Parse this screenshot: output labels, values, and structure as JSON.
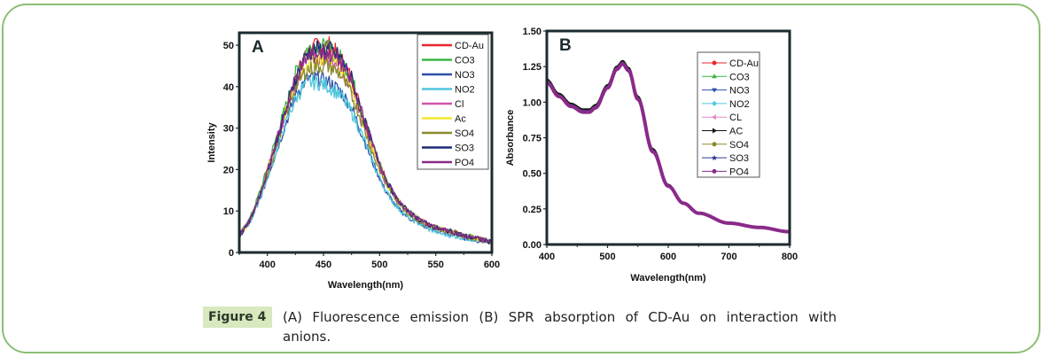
{
  "figure": {
    "label": "Figure 4",
    "caption": "(A) Fluorescence emission (B) SPR absorption of CD-Au on interaction with anions."
  },
  "chart_data": [
    {
      "type": "line",
      "panel_label": "A",
      "title": "",
      "xlabel": "Wavelength(nm)",
      "ylabel": "Intensity",
      "xlim": [
        375,
        600
      ],
      "ylim": [
        0,
        53
      ],
      "xticks": [
        400,
        450,
        500,
        550,
        600
      ],
      "yticks": [
        0,
        10,
        20,
        30,
        40,
        50
      ],
      "grid": false,
      "legend_position": "top-right",
      "x": [
        375,
        385,
        395,
        405,
        415,
        425,
        435,
        445,
        455,
        465,
        475,
        485,
        495,
        505,
        515,
        525,
        535,
        545,
        555,
        565,
        575,
        585,
        600
      ],
      "series": [
        {
          "name": "CD-Au",
          "color": "#e8262a",
          "values": [
            4,
            8,
            15,
            24,
            33,
            42,
            48,
            50,
            50,
            47,
            42,
            33,
            25,
            18,
            13,
            10,
            8,
            6.5,
            5.5,
            5,
            4,
            3.5,
            2.5
          ]
        },
        {
          "name": "CO3",
          "color": "#3cb544",
          "values": [
            4,
            8.5,
            16,
            25,
            34,
            43,
            49,
            50,
            49,
            47,
            42,
            34,
            25,
            18,
            13,
            10,
            8,
            6.5,
            5.5,
            5,
            4.5,
            3.5,
            2.5
          ]
        },
        {
          "name": "NO3",
          "color": "#2e4fa8",
          "values": [
            4,
            7.5,
            14,
            22,
            30,
            38,
            42,
            42,
            41,
            39,
            35,
            28,
            21,
            15,
            11,
            8.5,
            7,
            5.5,
            5,
            4.5,
            3.5,
            3,
            2.5
          ]
        },
        {
          "name": "NO2",
          "color": "#4fc6dc",
          "values": [
            4,
            7.5,
            14,
            22,
            30,
            37,
            41,
            41,
            40,
            38,
            34,
            28,
            21,
            15,
            11,
            8.5,
            7,
            5.5,
            4.5,
            4,
            3.5,
            3,
            2.5
          ]
        },
        {
          "name": "Cl",
          "color": "#d154a8",
          "values": [
            4,
            8,
            15,
            24,
            32,
            41,
            46,
            47,
            47,
            45,
            40,
            32,
            24,
            17,
            13,
            10,
            8,
            6.5,
            5.5,
            5,
            4,
            3.5,
            2.5
          ]
        },
        {
          "name": "Ac",
          "color": "#f3e82c",
          "values": [
            4,
            8,
            15,
            24,
            33,
            41,
            46,
            47,
            47,
            45,
            40,
            32,
            24,
            17,
            13,
            10,
            8,
            6.5,
            5.5,
            5,
            4,
            3.5,
            2.5
          ]
        },
        {
          "name": "SO4",
          "color": "#8b8a2f",
          "values": [
            4,
            8,
            15,
            23,
            32,
            40,
            44,
            45,
            45,
            43,
            38,
            31,
            23,
            17,
            12.5,
            9.5,
            7.5,
            6,
            5.5,
            5,
            4,
            3.5,
            2.5
          ]
        },
        {
          "name": "SO3",
          "color": "#1e2a78",
          "values": [
            4,
            8,
            15,
            24,
            33,
            42,
            48,
            49,
            49,
            47,
            42,
            33,
            25,
            18,
            13,
            10,
            8,
            6.5,
            5.5,
            5,
            4,
            3.5,
            2.5
          ]
        },
        {
          "name": "PO4",
          "color": "#8a2a8a",
          "values": [
            4,
            8,
            15,
            24,
            33,
            42,
            47,
            48,
            48,
            46,
            41,
            33,
            25,
            18,
            13,
            10,
            8,
            6.5,
            5.5,
            5,
            4,
            3.5,
            2.5
          ]
        }
      ]
    },
    {
      "type": "line",
      "panel_label": "B",
      "title": "",
      "xlabel": "Wavelength(nm)",
      "ylabel": "Absorbance",
      "xlim": [
        400,
        800
      ],
      "ylim": [
        0,
        1.5
      ],
      "xticks": [
        400,
        500,
        600,
        700,
        800
      ],
      "yticks": [
        "0.00",
        "0.25",
        "0.50",
        "0.75",
        "1.00",
        "1.25",
        "1.50"
      ],
      "grid": false,
      "legend_position": "top-right",
      "x": [
        400,
        420,
        440,
        460,
        470,
        480,
        500,
        515,
        525,
        535,
        550,
        575,
        600,
        625,
        650,
        700,
        750,
        800
      ],
      "series": [
        {
          "name": "CD-Au",
          "color": "#e8262a",
          "marker": "circle",
          "values": [
            1.16,
            1.06,
            0.99,
            0.95,
            0.95,
            0.98,
            1.12,
            1.25,
            1.29,
            1.24,
            1.04,
            0.67,
            0.42,
            0.29,
            0.22,
            0.15,
            0.12,
            0.09
          ]
        },
        {
          "name": "CO3",
          "color": "#3cb544",
          "marker": "triangle-up",
          "values": [
            1.16,
            1.06,
            0.99,
            0.95,
            0.95,
            0.98,
            1.12,
            1.25,
            1.29,
            1.24,
            1.04,
            0.67,
            0.42,
            0.29,
            0.22,
            0.15,
            0.12,
            0.09
          ]
        },
        {
          "name": "NO3",
          "color": "#2e4fa8",
          "marker": "triangle-down",
          "values": [
            1.15,
            1.05,
            0.98,
            0.94,
            0.94,
            0.97,
            1.11,
            1.24,
            1.28,
            1.23,
            1.03,
            0.66,
            0.41,
            0.29,
            0.22,
            0.15,
            0.12,
            0.09
          ]
        },
        {
          "name": "NO2",
          "color": "#4fc6dc",
          "marker": "diamond",
          "values": [
            1.15,
            1.05,
            0.98,
            0.94,
            0.94,
            0.97,
            1.11,
            1.24,
            1.28,
            1.23,
            1.03,
            0.66,
            0.41,
            0.29,
            0.22,
            0.15,
            0.12,
            0.09
          ]
        },
        {
          "name": "CL",
          "color": "#e48ac4",
          "marker": "triangle-left",
          "values": [
            1.15,
            1.05,
            0.98,
            0.94,
            0.94,
            0.97,
            1.11,
            1.24,
            1.28,
            1.23,
            1.03,
            0.66,
            0.41,
            0.29,
            0.22,
            0.15,
            0.12,
            0.09
          ]
        },
        {
          "name": "AC",
          "color": "#111111",
          "marker": "triangle-right",
          "values": [
            1.16,
            1.06,
            0.99,
            0.95,
            0.95,
            0.98,
            1.12,
            1.25,
            1.29,
            1.24,
            1.04,
            0.67,
            0.42,
            0.29,
            0.22,
            0.15,
            0.12,
            0.09
          ]
        },
        {
          "name": "SO4",
          "color": "#8b8a2f",
          "marker": "circle",
          "values": [
            1.15,
            1.05,
            0.98,
            0.94,
            0.94,
            0.97,
            1.11,
            1.24,
            1.28,
            1.23,
            1.03,
            0.66,
            0.41,
            0.29,
            0.22,
            0.15,
            0.12,
            0.09
          ]
        },
        {
          "name": "SO3",
          "color": "#2e3a8a",
          "marker": "star",
          "values": [
            1.15,
            1.05,
            0.98,
            0.94,
            0.94,
            0.97,
            1.11,
            1.24,
            1.28,
            1.23,
            1.03,
            0.66,
            0.41,
            0.29,
            0.22,
            0.15,
            0.12,
            0.09
          ]
        },
        {
          "name": "PO4",
          "color": "#8a2a8a",
          "marker": "circle",
          "values": [
            1.14,
            1.04,
            0.97,
            0.93,
            0.93,
            0.96,
            1.1,
            1.23,
            1.27,
            1.22,
            1.02,
            0.65,
            0.41,
            0.29,
            0.22,
            0.15,
            0.12,
            0.09
          ]
        }
      ]
    }
  ]
}
